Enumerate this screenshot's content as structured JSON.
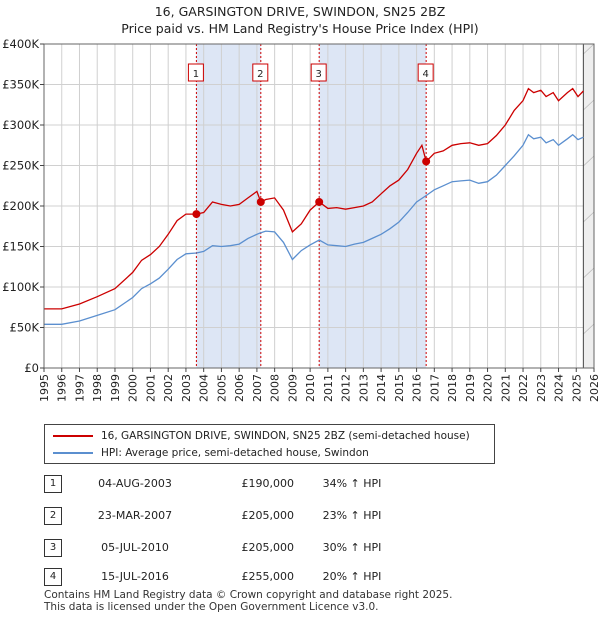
{
  "header": {
    "title": "16, GARSINGTON DRIVE, SWINDON, SN25 2BZ",
    "subtitle": "Price paid vs. HM Land Registry's House Price Index (HPI)"
  },
  "chart_data": {
    "type": "line",
    "title": "16, GARSINGTON DRIVE, SWINDON, SN25 2BZ",
    "subtitle": "Price paid vs. HM Land Registry's House Price Index (HPI)",
    "xlabel": "",
    "ylabel": "",
    "xlim": [
      1995,
      2026
    ],
    "ylim": [
      0,
      400000
    ],
    "y_ticks": [
      0,
      50000,
      100000,
      150000,
      200000,
      250000,
      300000,
      350000,
      400000
    ],
    "y_tick_labels": [
      "£0",
      "£50K",
      "£100K",
      "£150K",
      "£200K",
      "£250K",
      "£300K",
      "£350K",
      "£400K"
    ],
    "x_ticks": [
      1995,
      1996,
      1997,
      1998,
      1999,
      2000,
      2001,
      2002,
      2003,
      2004,
      2005,
      2006,
      2007,
      2008,
      2009,
      2010,
      2011,
      2012,
      2013,
      2014,
      2015,
      2016,
      2017,
      2018,
      2019,
      2020,
      2021,
      2022,
      2023,
      2024,
      2025,
      2026
    ],
    "grid": true,
    "data_end_year": 2025.4,
    "series": [
      {
        "name": "16, GARSINGTON DRIVE, SWINDON, SN25 2BZ (semi-detached house)",
        "color": "#cc0000",
        "points": [
          [
            1995.0,
            73000
          ],
          [
            1996.0,
            73000
          ],
          [
            1997.0,
            79000
          ],
          [
            1998.0,
            88000
          ],
          [
            1999.0,
            98000
          ],
          [
            2000.0,
            118000
          ],
          [
            2000.5,
            133000
          ],
          [
            2001.0,
            140000
          ],
          [
            2001.5,
            150000
          ],
          [
            2002.0,
            165000
          ],
          [
            2002.5,
            182000
          ],
          [
            2003.0,
            190000
          ],
          [
            2003.59,
            190000
          ],
          [
            2004.0,
            192000
          ],
          [
            2004.5,
            205000
          ],
          [
            2005.0,
            202000
          ],
          [
            2005.5,
            200000
          ],
          [
            2006.0,
            202000
          ],
          [
            2006.5,
            210000
          ],
          [
            2007.0,
            218000
          ],
          [
            2007.22,
            205000
          ],
          [
            2007.5,
            208000
          ],
          [
            2008.0,
            210000
          ],
          [
            2008.5,
            195000
          ],
          [
            2009.0,
            168000
          ],
          [
            2009.5,
            178000
          ],
          [
            2010.0,
            195000
          ],
          [
            2010.51,
            205000
          ],
          [
            2011.0,
            197000
          ],
          [
            2011.5,
            198000
          ],
          [
            2012.0,
            196000
          ],
          [
            2012.5,
            198000
          ],
          [
            2013.0,
            200000
          ],
          [
            2013.5,
            205000
          ],
          [
            2014.0,
            215000
          ],
          [
            2014.5,
            225000
          ],
          [
            2015.0,
            232000
          ],
          [
            2015.5,
            245000
          ],
          [
            2016.0,
            265000
          ],
          [
            2016.3,
            275000
          ],
          [
            2016.54,
            255000
          ],
          [
            2017.0,
            265000
          ],
          [
            2017.5,
            268000
          ],
          [
            2018.0,
            275000
          ],
          [
            2018.5,
            277000
          ],
          [
            2019.0,
            278000
          ],
          [
            2019.5,
            275000
          ],
          [
            2020.0,
            277000
          ],
          [
            2020.5,
            287000
          ],
          [
            2021.0,
            300000
          ],
          [
            2021.5,
            318000
          ],
          [
            2022.0,
            330000
          ],
          [
            2022.3,
            345000
          ],
          [
            2022.6,
            340000
          ],
          [
            2023.0,
            343000
          ],
          [
            2023.3,
            335000
          ],
          [
            2023.7,
            340000
          ],
          [
            2024.0,
            330000
          ],
          [
            2024.5,
            340000
          ],
          [
            2024.8,
            345000
          ],
          [
            2025.1,
            335000
          ],
          [
            2025.4,
            342000
          ]
        ]
      },
      {
        "name": "HPI: Average price, semi-detached house, Swindon",
        "color": "#5b8fcf",
        "points": [
          [
            1995.0,
            54000
          ],
          [
            1996.0,
            54000
          ],
          [
            1997.0,
            58000
          ],
          [
            1998.0,
            65000
          ],
          [
            1999.0,
            72000
          ],
          [
            2000.0,
            87000
          ],
          [
            2000.5,
            98000
          ],
          [
            2001.0,
            104000
          ],
          [
            2001.5,
            111000
          ],
          [
            2002.0,
            122000
          ],
          [
            2002.5,
            134000
          ],
          [
            2003.0,
            141000
          ],
          [
            2003.59,
            142000
          ],
          [
            2004.0,
            144000
          ],
          [
            2004.5,
            151000
          ],
          [
            2005.0,
            150000
          ],
          [
            2005.5,
            151000
          ],
          [
            2006.0,
            153000
          ],
          [
            2006.5,
            160000
          ],
          [
            2007.0,
            165000
          ],
          [
            2007.22,
            167000
          ],
          [
            2007.5,
            169000
          ],
          [
            2008.0,
            168000
          ],
          [
            2008.5,
            155000
          ],
          [
            2009.0,
            134000
          ],
          [
            2009.5,
            145000
          ],
          [
            2010.0,
            152000
          ],
          [
            2010.51,
            158000
          ],
          [
            2011.0,
            152000
          ],
          [
            2011.5,
            151000
          ],
          [
            2012.0,
            150000
          ],
          [
            2012.5,
            153000
          ],
          [
            2013.0,
            155000
          ],
          [
            2013.5,
            160000
          ],
          [
            2014.0,
            165000
          ],
          [
            2014.5,
            172000
          ],
          [
            2015.0,
            180000
          ],
          [
            2015.5,
            192000
          ],
          [
            2016.0,
            205000
          ],
          [
            2016.54,
            213000
          ],
          [
            2017.0,
            220000
          ],
          [
            2017.5,
            225000
          ],
          [
            2018.0,
            230000
          ],
          [
            2018.5,
            231000
          ],
          [
            2019.0,
            232000
          ],
          [
            2019.5,
            228000
          ],
          [
            2020.0,
            230000
          ],
          [
            2020.5,
            238000
          ],
          [
            2021.0,
            250000
          ],
          [
            2021.5,
            262000
          ],
          [
            2022.0,
            275000
          ],
          [
            2022.3,
            288000
          ],
          [
            2022.6,
            283000
          ],
          [
            2023.0,
            285000
          ],
          [
            2023.3,
            278000
          ],
          [
            2023.7,
            282000
          ],
          [
            2024.0,
            275000
          ],
          [
            2024.5,
            283000
          ],
          [
            2024.8,
            288000
          ],
          [
            2025.1,
            282000
          ],
          [
            2025.4,
            285000
          ]
        ]
      }
    ],
    "sale_markers": [
      {
        "label": "1",
        "x": 2003.59,
        "y": 190000
      },
      {
        "label": "2",
        "x": 2007.22,
        "y": 205000
      },
      {
        "label": "3",
        "x": 2010.51,
        "y": 205000
      },
      {
        "label": "4",
        "x": 2016.54,
        "y": 255000
      }
    ],
    "shaded_periods": [
      [
        2003.59,
        2007.22
      ],
      [
        2010.51,
        2016.54
      ]
    ],
    "colors": {
      "property": "#cc0000",
      "hpi": "#5b8fcf",
      "shade": "#dde6f5",
      "grid": "#d0d0d0",
      "marker_line": "#cc0000",
      "label_border": "#cc0000"
    }
  },
  "legend": {
    "property_label": "16, GARSINGTON DRIVE, SWINDON, SN25 2BZ (semi-detached house)",
    "hpi_label": "HPI: Average price, semi-detached house, Swindon"
  },
  "transactions": [
    {
      "num": "1",
      "date": "04-AUG-2003",
      "price": "£190,000",
      "hpi": "34% ↑ HPI"
    },
    {
      "num": "2",
      "date": "23-MAR-2007",
      "price": "£205,000",
      "hpi": "23% ↑ HPI"
    },
    {
      "num": "3",
      "date": "05-JUL-2010",
      "price": "£205,000",
      "hpi": "30% ↑ HPI"
    },
    {
      "num": "4",
      "date": "15-JUL-2016",
      "price": "£255,000",
      "hpi": "20% ↑ HPI"
    }
  ],
  "footer": {
    "line1": "Contains HM Land Registry data © Crown copyright and database right 2025.",
    "line2": "This data is licensed under the Open Government Licence v3.0."
  }
}
